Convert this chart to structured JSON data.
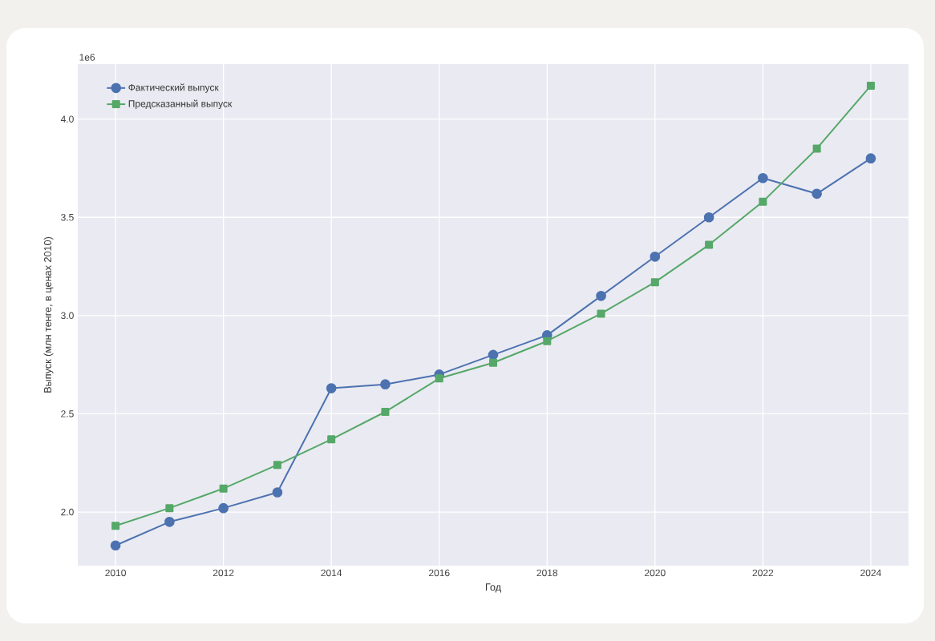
{
  "chart_data": {
    "type": "line",
    "xlabel": "Год",
    "ylabel": "Выпуск (млн тенге, в ценах 2010)",
    "annotations": [
      "1e6"
    ],
    "x": [
      2010,
      2011,
      2012,
      2013,
      2014,
      2015,
      2016,
      2017,
      2018,
      2019,
      2020,
      2021,
      2022,
      2023,
      2024
    ],
    "series": [
      {
        "name": "Фактический выпуск",
        "color": "#4c72b0",
        "marker": "circle",
        "values": [
          1.83,
          1.95,
          2.02,
          2.1,
          2.63,
          2.65,
          2.7,
          2.8,
          2.9,
          3.1,
          3.3,
          3.5,
          3.7,
          3.62,
          3.8
        ]
      },
      {
        "name": "Предсказанный выпуск",
        "color": "#55a868",
        "marker": "square",
        "values": [
          1.93,
          2.02,
          2.12,
          2.24,
          2.37,
          2.51,
          2.68,
          2.76,
          2.87,
          3.01,
          3.17,
          3.36,
          3.58,
          3.85,
          4.17
        ]
      }
    ],
    "xlim": [
      2009.3,
      2024.7
    ],
    "ylim": [
      1.727,
      4.28
    ],
    "xticks": [
      2010,
      2012,
      2014,
      2016,
      2018,
      2020,
      2022,
      2024
    ],
    "yticks": [
      {
        "value": 2,
        "label": "2.0"
      },
      {
        "value": 2.5,
        "label": "2.5"
      },
      {
        "value": 3,
        "label": "3.0"
      },
      {
        "value": 3.5,
        "label": "3.5"
      },
      {
        "value": 4,
        "label": "4.0"
      }
    ],
    "grid": true,
    "legend": "top left",
    "line_style": "solid"
  }
}
